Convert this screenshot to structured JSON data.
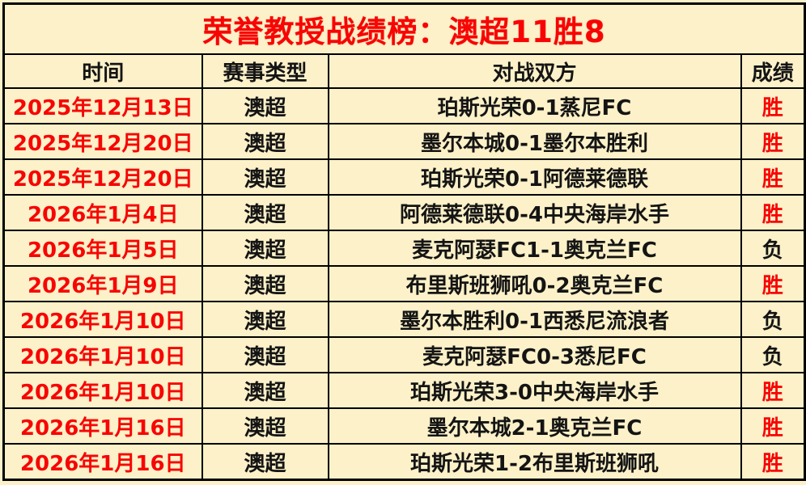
{
  "title": {
    "text": "荣誉教授战绩榜：澳超11胜8"
  },
  "colors": {
    "background": "#FCF1C8",
    "border": "#000000",
    "accent_red": "#F70505",
    "text_black": "#141414"
  },
  "table": {
    "headers": [
      "时间",
      "赛事类型",
      "对战双方",
      "成绩"
    ],
    "result_win_label": "胜",
    "result_loss_label": "负",
    "rows": [
      {
        "date": "2025年12月13日",
        "type": "澳超",
        "match": "珀斯光荣0-1蒸尼FC",
        "result": "胜"
      },
      {
        "date": "2025年12月20日",
        "type": "澳超",
        "match": "墨尔本城0-1墨尔本胜利",
        "result": "胜"
      },
      {
        "date": "2025年12月20日",
        "type": "澳超",
        "match": "珀斯光荣0-1阿德莱德联",
        "result": "胜"
      },
      {
        "date": "2026年1月4日",
        "type": "澳超",
        "match": "阿德莱德联0-4中央海岸水手",
        "result": "胜"
      },
      {
        "date": "2026年1月5日",
        "type": "澳超",
        "match": "麦克阿瑟FC1-1奥克兰FC",
        "result": "负"
      },
      {
        "date": "2026年1月9日",
        "type": "澳超",
        "match": "布里斯班狮吼0-2奥克兰FC",
        "result": "胜"
      },
      {
        "date": "2026年1月10日",
        "type": "澳超",
        "match": "墨尔本胜利0-1西悉尼流浪者",
        "result": "负"
      },
      {
        "date": "2026年1月10日",
        "type": "澳超",
        "match": "麦克阿瑟FC0-3悉尼FC",
        "result": "负"
      },
      {
        "date": "2026年1月10日",
        "type": "澳超",
        "match": "珀斯光荣3-0中央海岸水手",
        "result": "胜"
      },
      {
        "date": "2026年1月16日",
        "type": "澳超",
        "match": "墨尔本城2-1奥克兰FC",
        "result": "胜"
      },
      {
        "date": "2026年1月16日",
        "type": "澳超",
        "match": "珀斯光荣1-2布里斯班狮吼",
        "result": "胜"
      }
    ]
  },
  "chart_data": {
    "type": "table",
    "title": "荣誉教授战绩榜：澳超11胜8",
    "columns": [
      "时间",
      "赛事类型",
      "对战双方",
      "成绩"
    ],
    "rows": [
      [
        "2025年12月13日",
        "澳超",
        "珀斯光荣0-1蒸尼FC",
        "胜"
      ],
      [
        "2025年12月20日",
        "澳超",
        "墨尔本城0-1墨尔本胜利",
        "胜"
      ],
      [
        "2025年12月20日",
        "澳超",
        "珀斯光荣0-1阿德莱德联",
        "胜"
      ],
      [
        "2026年1月4日",
        "澳超",
        "阿德莱德联0-4中央海岸水手",
        "胜"
      ],
      [
        "2026年1月5日",
        "澳超",
        "麦克阿瑟FC1-1奥克兰FC",
        "负"
      ],
      [
        "2026年1月9日",
        "澳超",
        "布里斯班狮吼0-2奥克兰FC",
        "胜"
      ],
      [
        "2026年1月10日",
        "澳超",
        "墨尔本胜利0-1西悉尼流浪者",
        "负"
      ],
      [
        "2026年1月10日",
        "澳超",
        "麦克阿瑟FC0-3悉尼FC",
        "负"
      ],
      [
        "2026年1月10日",
        "澳超",
        "珀斯光荣3-0中央海岸水手",
        "胜"
      ],
      [
        "2026年1月16日",
        "澳超",
        "墨尔本城2-1奥克兰FC",
        "胜"
      ],
      [
        "2026年1月16日",
        "澳超",
        "珀斯光荣1-2布里斯班狮吼",
        "胜"
      ]
    ],
    "summary": {
      "total_matches": 11,
      "wins": 8,
      "losses": 3
    }
  }
}
